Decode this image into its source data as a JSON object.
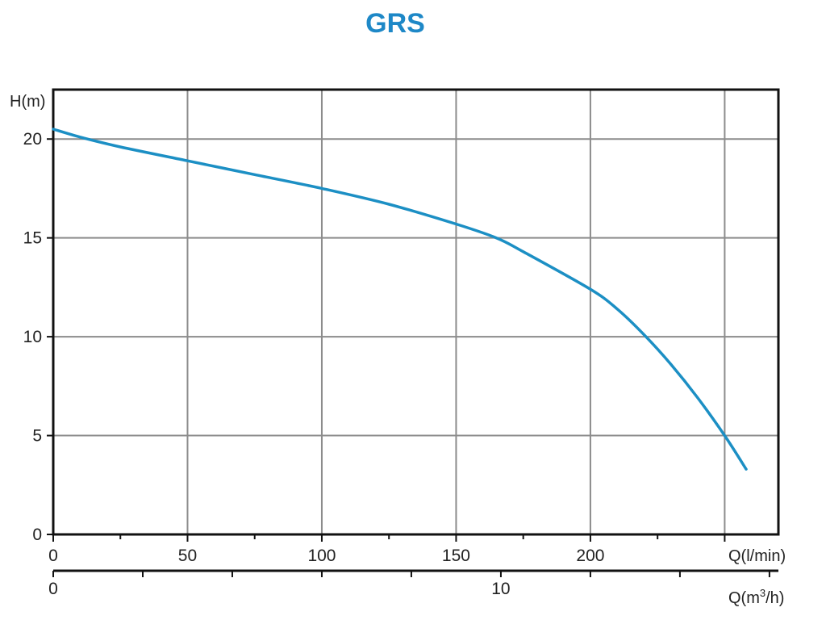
{
  "title": "GRS",
  "colors": {
    "title": "#1e88c7",
    "curve": "#1c8fc4",
    "grid": "#8c8c8c",
    "frame": "#111111"
  },
  "chart_data": {
    "type": "line",
    "title": "GRS",
    "ylabel": "H(m)",
    "xlabel": "Q(l/min)",
    "x2label_prefix": "Q(m",
    "x2label_sup": "3",
    "x2label_suffix": "/h)",
    "xlim": [
      0,
      270
    ],
    "ylim": [
      0,
      22.5
    ],
    "x_ticks": [
      0,
      50,
      100,
      150,
      200
    ],
    "x_tick_labels": [
      "0",
      "50",
      "100",
      "150",
      "200"
    ],
    "x_minor_ticks": [
      25,
      75,
      125,
      175,
      225
    ],
    "x_grid": [
      50,
      100,
      150,
      200,
      250
    ],
    "y_ticks": [
      0,
      5,
      10,
      15,
      20
    ],
    "y_tick_labels": [
      "0",
      "5",
      "10",
      "15",
      "20"
    ],
    "x2_unit_per_lmin": 0.06,
    "x2_ticks": [
      0,
      2,
      4,
      6,
      8,
      10,
      12,
      14,
      16
    ],
    "x2_tick_labels": [
      "0",
      "10"
    ],
    "x2_labeled": [
      0,
      10
    ],
    "grid": true,
    "series": [
      {
        "x": [
          0,
          10,
          25,
          50,
          75,
          100,
          125,
          150,
          165,
          175,
          200,
          210,
          220,
          230,
          240,
          250,
          258
        ],
        "y": [
          20.5,
          20.1,
          19.6,
          18.9,
          18.2,
          17.5,
          16.7,
          15.7,
          15.0,
          14.3,
          12.4,
          11.4,
          10.1,
          8.6,
          6.9,
          5.0,
          3.3
        ]
      }
    ]
  }
}
